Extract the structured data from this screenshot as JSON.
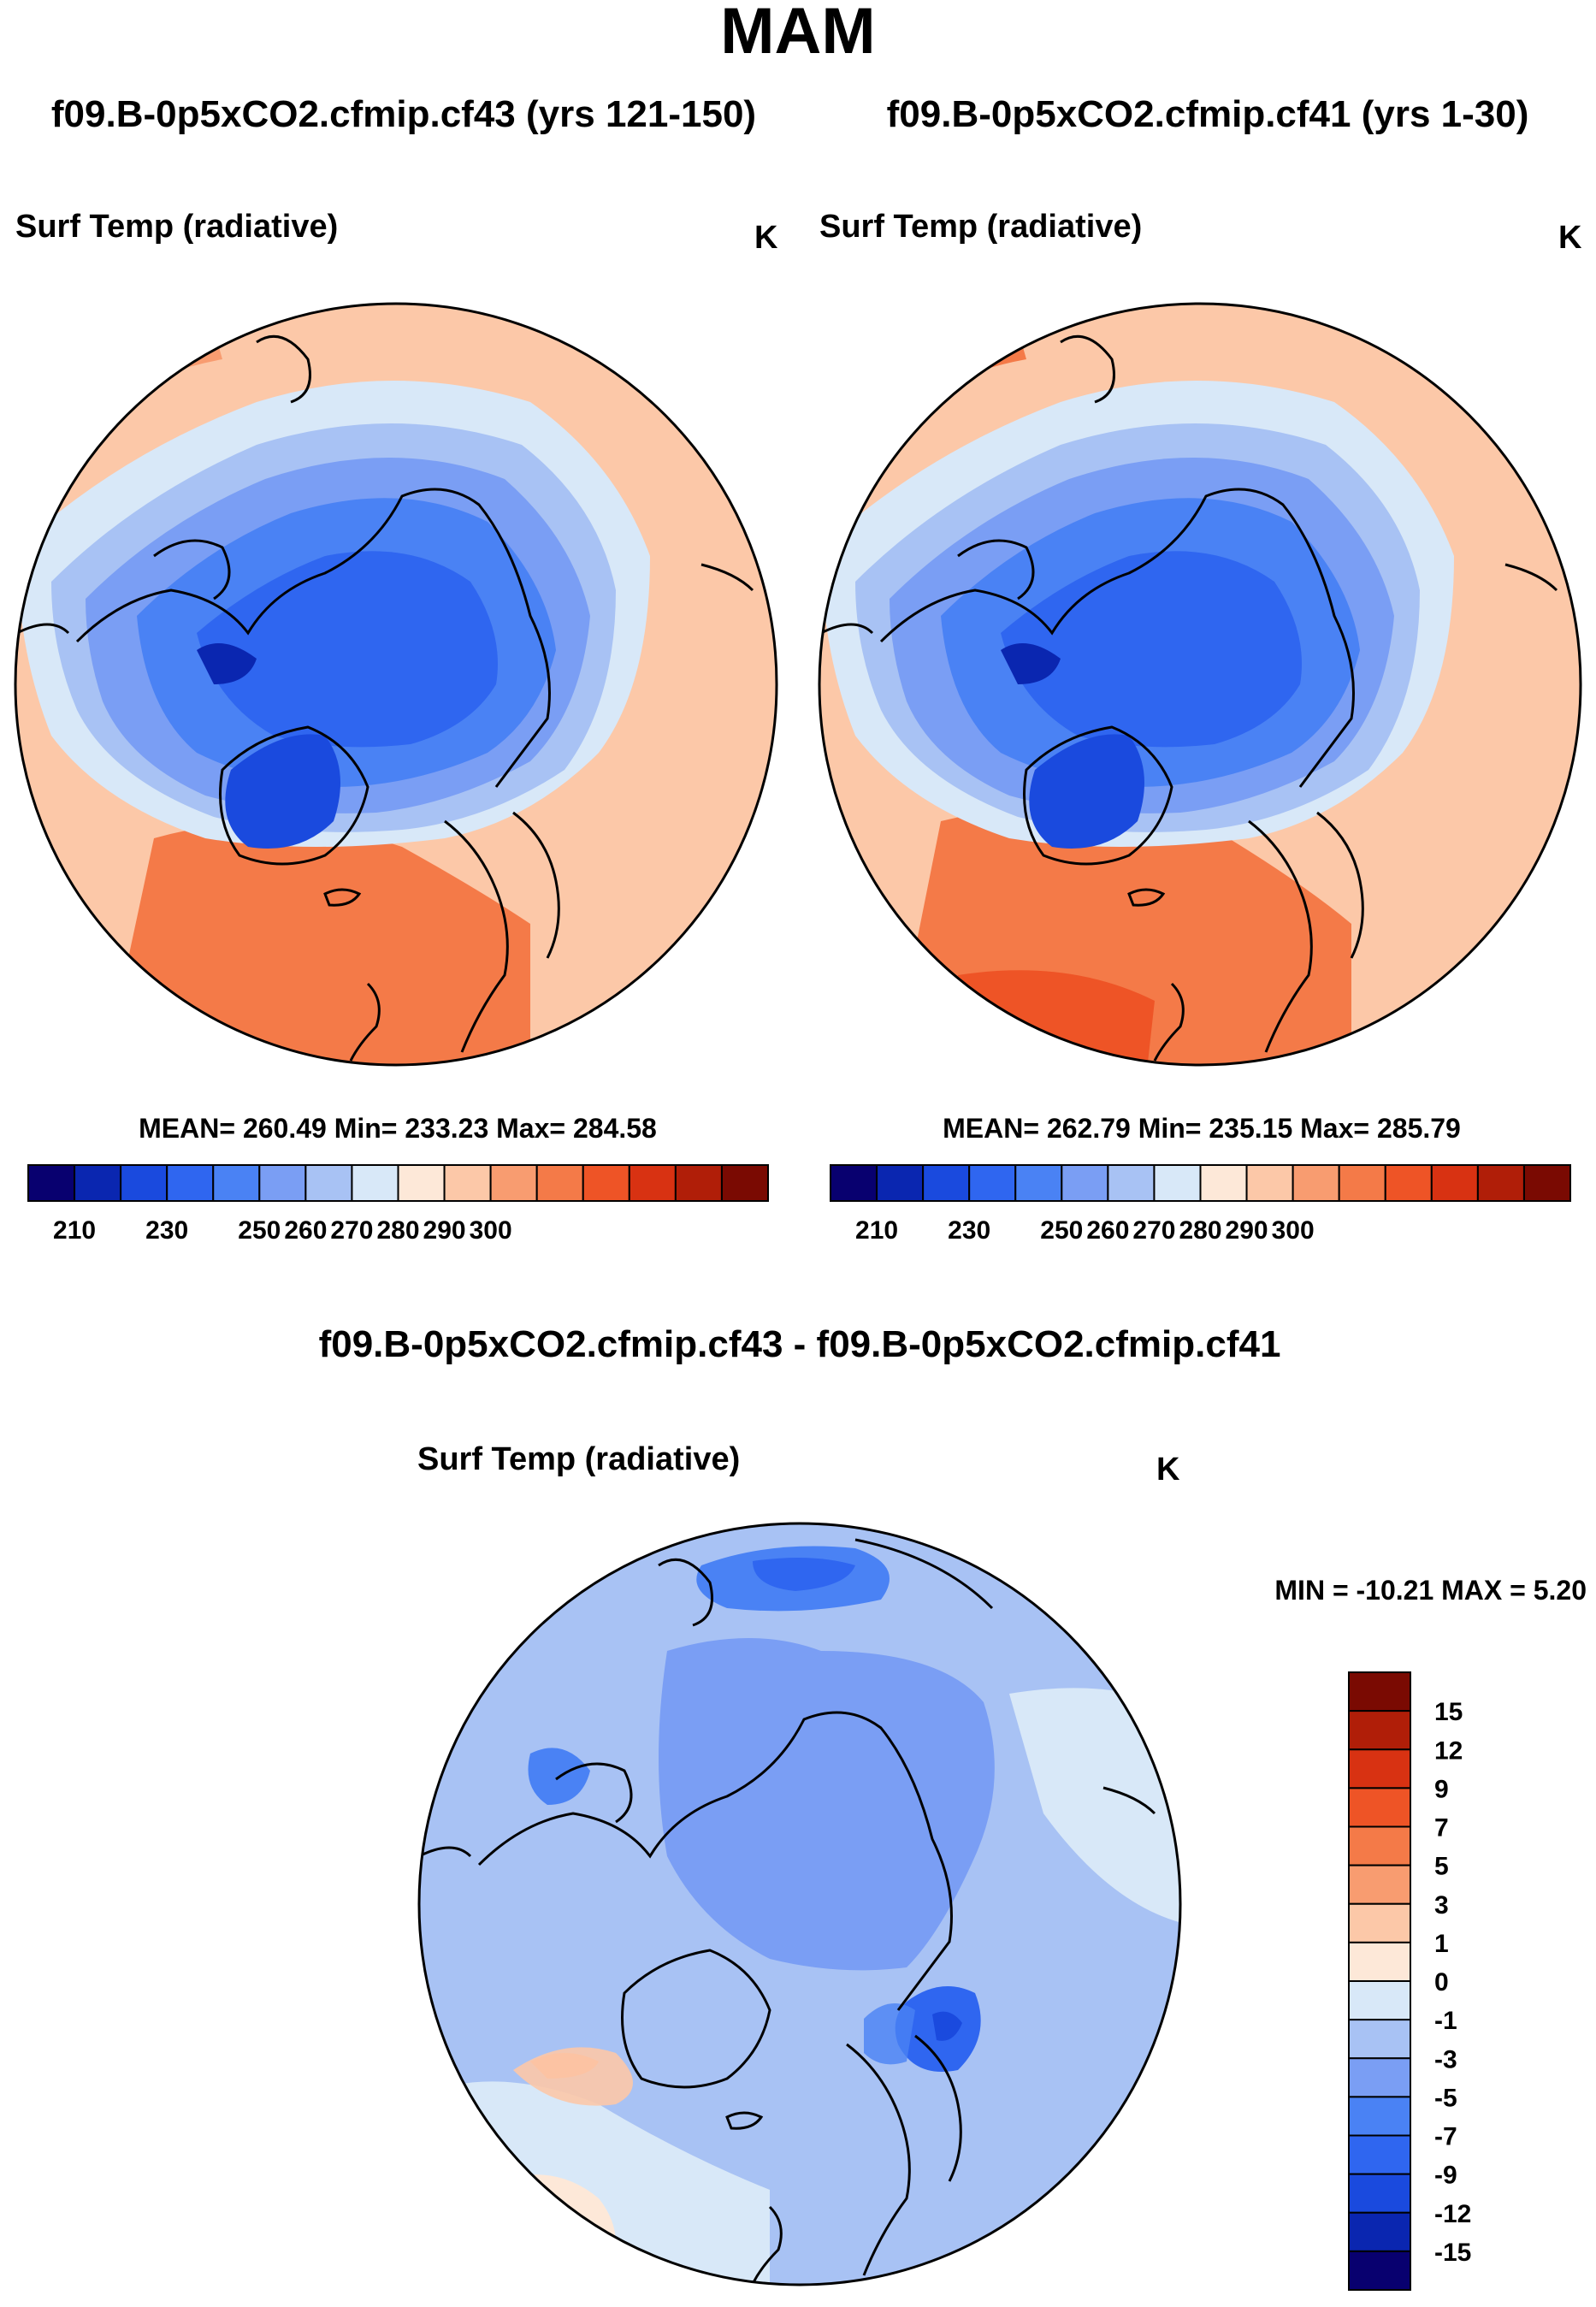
{
  "season": "MAM",
  "panels": {
    "left": {
      "case_title": "f09.B-0p5xCO2.cfmip.cf43 (yrs 121-150)",
      "variable": "Surf Temp (radiative)",
      "units": "K",
      "stats": "MEAN= 260.49  Min= 233.23  Max= 284.58"
    },
    "right": {
      "case_title": "f09.B-0p5xCO2.cfmip.cf41 (yrs 1-30)",
      "variable": "Surf Temp (radiative)",
      "units": "K",
      "stats": "MEAN= 262.79  Min= 235.15  Max= 285.79"
    },
    "diff": {
      "case_title": "f09.B-0p5xCO2.cfmip.cf43 - f09.B-0p5xCO2.cfmip.cf41",
      "variable": "Surf Temp (radiative)",
      "units": "K",
      "stats": "MIN = -10.21 MAX =   5.20"
    }
  },
  "colors": {
    "abs_scale": [
      "#08006f",
      "#0a26b0",
      "#1a4ade",
      "#2f66f0",
      "#4a82f4",
      "#7a9ef4",
      "#a8c2f4",
      "#d8e8f8",
      "#fde8d8",
      "#fcc8a8",
      "#f89c70",
      "#f47a48",
      "#ee5426",
      "#d83212",
      "#b01e08",
      "#7a0a02"
    ],
    "diff_scale": [
      "#08006f",
      "#0a26b0",
      "#1a4ade",
      "#2f66f0",
      "#4a82f4",
      "#7a9ef4",
      "#a8c2f4",
      "#d8e8f8",
      "#fde8d8",
      "#fcc8a8",
      "#f89c70",
      "#f47a48",
      "#ee5426",
      "#d83212",
      "#b01e08",
      "#7a0a02"
    ]
  },
  "chart_data": [
    {
      "type": "heatmap",
      "projection": "north polar stereographic",
      "title": "f09.B-0p5xCO2.cfmip.cf43 (yrs 121-150)",
      "variable": "Surf Temp (radiative)",
      "units": "K",
      "mean": 260.49,
      "min": 233.23,
      "max": 284.58,
      "contour_levels": [
        205,
        210,
        215,
        220,
        225,
        230,
        235,
        240,
        245,
        250,
        255,
        260,
        265,
        270,
        275,
        280,
        285,
        290,
        295,
        300,
        305
      ],
      "colorbar_ticks": [
        "210",
        "230",
        "250",
        "260",
        "270",
        "280",
        "290",
        "300"
      ]
    },
    {
      "type": "heatmap",
      "projection": "north polar stereographic",
      "title": "f09.B-0p5xCO2.cfmip.cf41 (yrs 1-30)",
      "variable": "Surf Temp (radiative)",
      "units": "K",
      "mean": 262.79,
      "min": 235.15,
      "max": 285.79,
      "contour_levels": [
        205,
        210,
        215,
        220,
        225,
        230,
        235,
        240,
        245,
        250,
        255,
        260,
        265,
        270,
        275,
        280,
        285,
        290,
        295,
        300,
        305
      ],
      "colorbar_ticks": [
        "210",
        "230",
        "250",
        "260",
        "270",
        "280",
        "290",
        "300"
      ]
    },
    {
      "type": "heatmap",
      "projection": "north polar stereographic",
      "title": "f09.B-0p5xCO2.cfmip.cf43 - f09.B-0p5xCO2.cfmip.cf41",
      "variable": "Surf Temp (radiative)",
      "units": "K",
      "min": -10.21,
      "max": 5.2,
      "colorbar_ticks": [
        "15",
        "12",
        "9",
        "7",
        "5",
        "3",
        "1",
        "0",
        "-1",
        "-3",
        "-5",
        "-7",
        "-9",
        "-12",
        "-15"
      ]
    }
  ]
}
